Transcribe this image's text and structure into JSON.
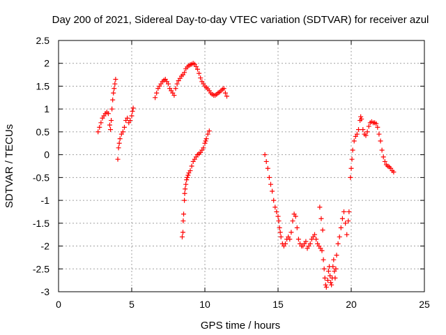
{
  "chart_data": {
    "type": "scatter",
    "title": "Day 200 of 2021, Sidereal Day-to-day VTEC variation (SDTVAR) for receiver azul",
    "xlabel": "GPS time / hours",
    "ylabel": "SDTVAR / TECUs",
    "xlim": [
      0,
      25
    ],
    "ylim": [
      -3,
      2.5
    ],
    "xticks": [
      0,
      5,
      10,
      15,
      20,
      25
    ],
    "yticks": [
      -3,
      -2.5,
      -2,
      -1.5,
      -1,
      -0.5,
      0,
      0.5,
      1,
      1.5,
      2,
      2.5
    ],
    "xtick_labels": [
      "0",
      "5",
      "10",
      "15",
      "20",
      "25"
    ],
    "ytick_labels": [
      "-3",
      "-2.5",
      "-2",
      "-1.5",
      "-1",
      "-0.5",
      "0",
      "0.5",
      "1",
      "1.5",
      "2",
      "2.5"
    ],
    "grid": true,
    "marker": "+",
    "color": "#ff0000",
    "series": [
      {
        "points": [
          [
            2.7,
            0.5
          ],
          [
            2.8,
            0.6
          ],
          [
            2.9,
            0.7
          ],
          [
            3.0,
            0.8
          ],
          [
            3.1,
            0.85
          ],
          [
            3.2,
            0.9
          ],
          [
            3.3,
            0.93
          ],
          [
            3.4,
            0.9
          ],
          [
            3.5,
            0.65
          ],
          [
            3.55,
            0.55
          ],
          [
            3.6,
            0.75
          ],
          [
            3.65,
            1.0
          ],
          [
            3.7,
            1.2
          ],
          [
            3.75,
            1.35
          ],
          [
            3.8,
            1.45
          ],
          [
            3.85,
            1.55
          ],
          [
            3.9,
            1.65
          ],
          [
            4.05,
            -0.1
          ],
          [
            4.1,
            0.15
          ],
          [
            4.15,
            0.25
          ],
          [
            4.2,
            0.35
          ],
          [
            4.3,
            0.45
          ],
          [
            4.4,
            0.5
          ],
          [
            4.5,
            0.6
          ],
          [
            4.6,
            0.75
          ],
          [
            4.7,
            0.8
          ],
          [
            4.8,
            0.7
          ],
          [
            4.9,
            0.75
          ],
          [
            5.0,
            0.85
          ],
          [
            5.05,
            0.95
          ],
          [
            5.1,
            1.02
          ]
        ]
      },
      {
        "points": [
          [
            6.6,
            1.25
          ],
          [
            6.7,
            1.35
          ],
          [
            6.8,
            1.45
          ],
          [
            6.9,
            1.5
          ],
          [
            7.0,
            1.55
          ],
          [
            7.1,
            1.6
          ],
          [
            7.2,
            1.63
          ],
          [
            7.3,
            1.65
          ],
          [
            7.4,
            1.6
          ],
          [
            7.5,
            1.55
          ],
          [
            7.6,
            1.45
          ],
          [
            7.7,
            1.4
          ],
          [
            7.8,
            1.35
          ],
          [
            7.9,
            1.3
          ],
          [
            8.0,
            1.45
          ],
          [
            8.1,
            1.55
          ],
          [
            8.2,
            1.62
          ],
          [
            8.3,
            1.67
          ],
          [
            8.4,
            1.72
          ],
          [
            8.5,
            1.75
          ],
          [
            8.6,
            1.8
          ],
          [
            8.7,
            1.88
          ],
          [
            8.8,
            1.92
          ],
          [
            8.9,
            1.95
          ],
          [
            9.0,
            1.97
          ],
          [
            9.1,
            1.98
          ],
          [
            9.2,
            2.0
          ],
          [
            9.3,
            1.98
          ],
          [
            9.4,
            1.93
          ],
          [
            9.5,
            1.87
          ],
          [
            9.6,
            1.78
          ],
          [
            9.7,
            1.68
          ],
          [
            9.8,
            1.6
          ],
          [
            9.9,
            1.55
          ],
          [
            10.0,
            1.5
          ],
          [
            10.1,
            1.47
          ],
          [
            10.2,
            1.44
          ],
          [
            10.3,
            1.4
          ],
          [
            10.4,
            1.35
          ],
          [
            10.5,
            1.32
          ],
          [
            10.6,
            1.3
          ],
          [
            10.7,
            1.3
          ],
          [
            10.8,
            1.32
          ],
          [
            10.9,
            1.35
          ],
          [
            11.0,
            1.37
          ],
          [
            11.1,
            1.4
          ],
          [
            11.2,
            1.43
          ],
          [
            11.3,
            1.45
          ],
          [
            11.4,
            1.35
          ],
          [
            11.5,
            1.28
          ]
        ]
      },
      {
        "points": [
          [
            8.45,
            -1.8
          ],
          [
            8.5,
            -1.7
          ],
          [
            8.52,
            -1.45
          ],
          [
            8.55,
            -1.3
          ],
          [
            8.6,
            -1.0
          ],
          [
            8.62,
            -0.85
          ],
          [
            8.65,
            -0.75
          ],
          [
            8.7,
            -0.65
          ],
          [
            8.75,
            -0.55
          ],
          [
            8.8,
            -0.5
          ],
          [
            8.85,
            -0.45
          ],
          [
            8.9,
            -0.4
          ],
          [
            9.0,
            -0.35
          ],
          [
            9.1,
            -0.25
          ],
          [
            9.2,
            -0.15
          ],
          [
            9.3,
            -0.1
          ],
          [
            9.4,
            -0.05
          ],
          [
            9.5,
            0.0
          ],
          [
            9.6,
            0.02
          ],
          [
            9.7,
            0.05
          ],
          [
            9.8,
            0.1
          ],
          [
            9.9,
            0.15
          ],
          [
            10.0,
            0.25
          ],
          [
            10.05,
            0.3
          ],
          [
            10.1,
            0.35
          ],
          [
            10.2,
            0.45
          ],
          [
            10.3,
            0.52
          ]
        ]
      },
      {
        "points": [
          [
            14.1,
            0.0
          ],
          [
            14.2,
            -0.15
          ],
          [
            14.3,
            -0.3
          ],
          [
            14.4,
            -0.5
          ],
          [
            14.5,
            -0.65
          ],
          [
            14.6,
            -0.8
          ],
          [
            14.7,
            -1.0
          ],
          [
            14.8,
            -1.15
          ],
          [
            14.9,
            -1.25
          ],
          [
            15.0,
            -1.35
          ],
          [
            15.05,
            -1.45
          ],
          [
            15.1,
            -1.6
          ],
          [
            15.15,
            -1.7
          ],
          [
            15.2,
            -1.8
          ],
          [
            15.3,
            -1.95
          ],
          [
            15.4,
            -2.0
          ],
          [
            15.5,
            -1.95
          ],
          [
            15.6,
            -1.85
          ],
          [
            15.7,
            -1.8
          ],
          [
            15.8,
            -1.85
          ],
          [
            15.9,
            -1.7
          ],
          [
            16.0,
            -1.45
          ],
          [
            16.1,
            -1.3
          ],
          [
            16.2,
            -1.35
          ],
          [
            16.3,
            -1.6
          ],
          [
            16.4,
            -1.85
          ],
          [
            16.5,
            -1.95
          ],
          [
            16.6,
            -2.0
          ],
          [
            16.7,
            -2.0
          ],
          [
            16.8,
            -1.95
          ],
          [
            16.9,
            -1.9
          ],
          [
            17.0,
            -2.05
          ],
          [
            17.1,
            -2.0
          ],
          [
            17.2,
            -1.95
          ],
          [
            17.3,
            -1.85
          ],
          [
            17.4,
            -1.8
          ],
          [
            17.5,
            -1.75
          ],
          [
            17.6,
            -1.85
          ],
          [
            17.7,
            -1.95
          ],
          [
            17.8,
            -2.0
          ],
          [
            17.9,
            -2.05
          ],
          [
            18.0,
            -2.1
          ],
          [
            17.85,
            -1.15
          ],
          [
            17.95,
            -1.4
          ],
          [
            18.05,
            -1.65
          ],
          [
            18.1,
            -2.3
          ],
          [
            18.15,
            -2.5
          ],
          [
            18.2,
            -2.7
          ],
          [
            18.25,
            -2.85
          ],
          [
            18.3,
            -2.9
          ],
          [
            18.4,
            -2.75
          ],
          [
            18.45,
            -2.55
          ],
          [
            18.5,
            -2.45
          ],
          [
            18.55,
            -2.65
          ],
          [
            18.6,
            -2.8
          ],
          [
            18.65,
            -2.85
          ],
          [
            18.7,
            -2.7
          ],
          [
            18.75,
            -2.45
          ],
          [
            18.8,
            -2.3
          ],
          [
            18.85,
            -2.55
          ],
          [
            18.9,
            -2.7
          ],
          [
            18.95,
            -2.5
          ],
          [
            19.0,
            -2.2
          ],
          [
            19.1,
            -1.95
          ],
          [
            19.2,
            -1.8
          ],
          [
            19.3,
            -1.6
          ],
          [
            19.4,
            -1.4
          ],
          [
            19.5,
            -1.25
          ],
          [
            19.6,
            -1.5
          ],
          [
            19.7,
            -1.75
          ],
          [
            19.8,
            -1.45
          ],
          [
            19.85,
            -1.25
          ]
        ]
      },
      {
        "points": [
          [
            19.95,
            -0.5
          ],
          [
            20.0,
            -0.3
          ],
          [
            20.05,
            -0.1
          ],
          [
            20.1,
            0.1
          ],
          [
            20.2,
            0.3
          ],
          [
            20.3,
            0.4
          ],
          [
            20.4,
            0.45
          ],
          [
            20.5,
            0.55
          ],
          [
            20.6,
            0.75
          ],
          [
            20.65,
            0.83
          ],
          [
            20.7,
            0.78
          ],
          [
            20.8,
            0.55
          ],
          [
            20.9,
            0.45
          ],
          [
            21.0,
            0.42
          ],
          [
            21.1,
            0.5
          ],
          [
            21.2,
            0.62
          ],
          [
            21.3,
            0.7
          ],
          [
            21.4,
            0.72
          ],
          [
            21.5,
            0.7
          ],
          [
            21.6,
            0.7
          ],
          [
            21.7,
            0.68
          ],
          [
            21.8,
            0.6
          ],
          [
            21.9,
            0.45
          ],
          [
            22.0,
            0.3
          ],
          [
            22.1,
            0.1
          ],
          [
            22.2,
            -0.05
          ],
          [
            22.3,
            -0.15
          ],
          [
            22.4,
            -0.22
          ],
          [
            22.5,
            -0.25
          ],
          [
            22.6,
            -0.27
          ],
          [
            22.7,
            -0.3
          ],
          [
            22.8,
            -0.35
          ],
          [
            22.9,
            -0.38
          ]
        ]
      }
    ]
  }
}
